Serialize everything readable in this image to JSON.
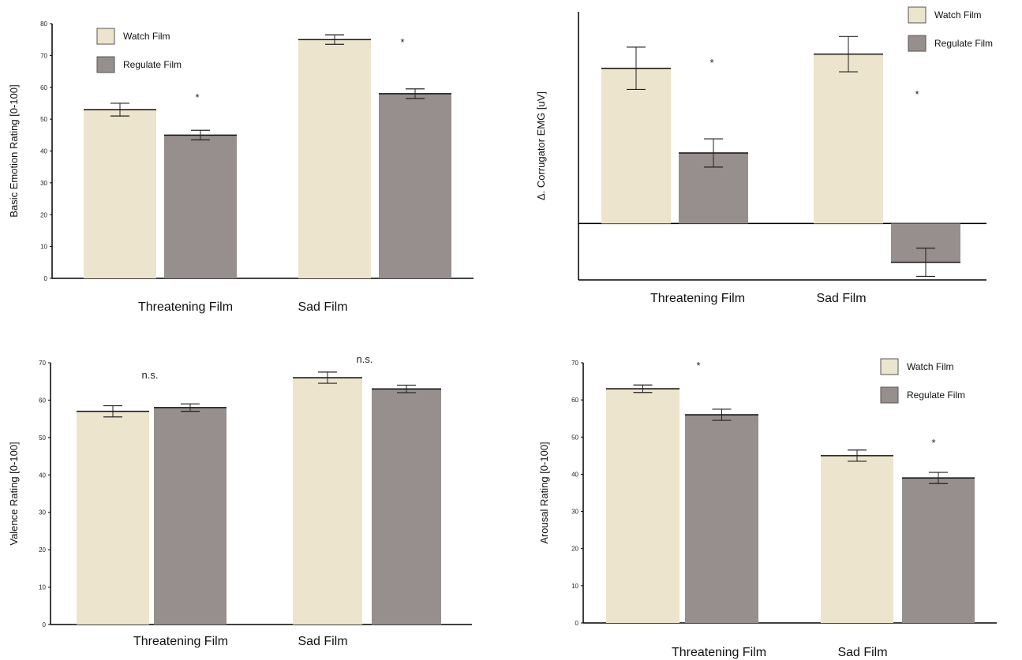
{
  "colors": {
    "watch": "#ede4cd",
    "regulate": "#968f8d",
    "axis": "#000000",
    "error": "#222222"
  },
  "chart_data": [
    {
      "type": "bar",
      "ylabel": "Basic Emotion Rating [0-100]",
      "categories": [
        "Threatening Film",
        "Sad Film"
      ],
      "ylim": [
        0,
        80
      ],
      "yticks": [
        "0",
        "10",
        "20",
        "30",
        "40",
        "50",
        "60",
        "70",
        "80"
      ],
      "series": [
        {
          "name": "Watch Film",
          "values": [
            53,
            75
          ],
          "errors": [
            2,
            1.5
          ]
        },
        {
          "name": "Regulate Film",
          "values": [
            45,
            58
          ],
          "errors": [
            1.5,
            1.5
          ]
        }
      ],
      "annotations": [
        {
          "category": "Threatening Film",
          "text": "*"
        },
        {
          "category": "Sad Film",
          "text": "*"
        }
      ],
      "legend": "top-left"
    },
    {
      "type": "bar",
      "ylabel": "Δ. Corrugator EMG [uV]",
      "categories": [
        "Threatening Film",
        "Sad Film"
      ],
      "ylim": [
        -0.08,
        0.3
      ],
      "yticks": [],
      "series": [
        {
          "name": "Watch Film",
          "values": [
            0.22,
            0.24
          ],
          "errors": [
            0.03,
            0.025
          ]
        },
        {
          "name": "Regulate Film",
          "values": [
            0.1,
            -0.055
          ],
          "errors": [
            0.02,
            0.02
          ]
        }
      ],
      "annotations": [
        {
          "category": "Threatening Film",
          "text": "*"
        },
        {
          "category": "Sad Film",
          "text": "*"
        }
      ],
      "legend": "top-right"
    },
    {
      "type": "bar",
      "ylabel": "Valence Rating [0-100]",
      "categories": [
        "Threatening Film",
        "Sad Film"
      ],
      "ylim": [
        0,
        70
      ],
      "yticks": [
        "0",
        "10",
        "20",
        "30",
        "40",
        "50",
        "60",
        "70"
      ],
      "series": [
        {
          "name": "Watch Film",
          "values": [
            57,
            66
          ],
          "errors": [
            1.5,
            1.5
          ]
        },
        {
          "name": "Regulate Film",
          "values": [
            58,
            63
          ],
          "errors": [
            1,
            1
          ]
        }
      ],
      "annotations": [
        {
          "category": "Threatening Film",
          "text": "n.s."
        },
        {
          "category": "Sad Film",
          "text": "n.s."
        }
      ],
      "legend": "none"
    },
    {
      "type": "bar",
      "ylabel": "Arousal Rating [0-100]",
      "categories": [
        "Threatening Film",
        "Sad Film"
      ],
      "ylim": [
        0,
        70
      ],
      "yticks": [
        "0",
        "10",
        "20",
        "30",
        "40",
        "50",
        "60",
        "70"
      ],
      "series": [
        {
          "name": "Watch Film",
          "values": [
            63,
            45
          ],
          "errors": [
            1,
            1.5
          ]
        },
        {
          "name": "Regulate Film",
          "values": [
            56,
            39
          ],
          "errors": [
            1.5,
            1.5
          ]
        }
      ],
      "annotations": [
        {
          "category": "Threatening Film",
          "text": "*"
        },
        {
          "category": "Sad Film",
          "text": "*"
        }
      ],
      "legend": "top-right"
    }
  ]
}
